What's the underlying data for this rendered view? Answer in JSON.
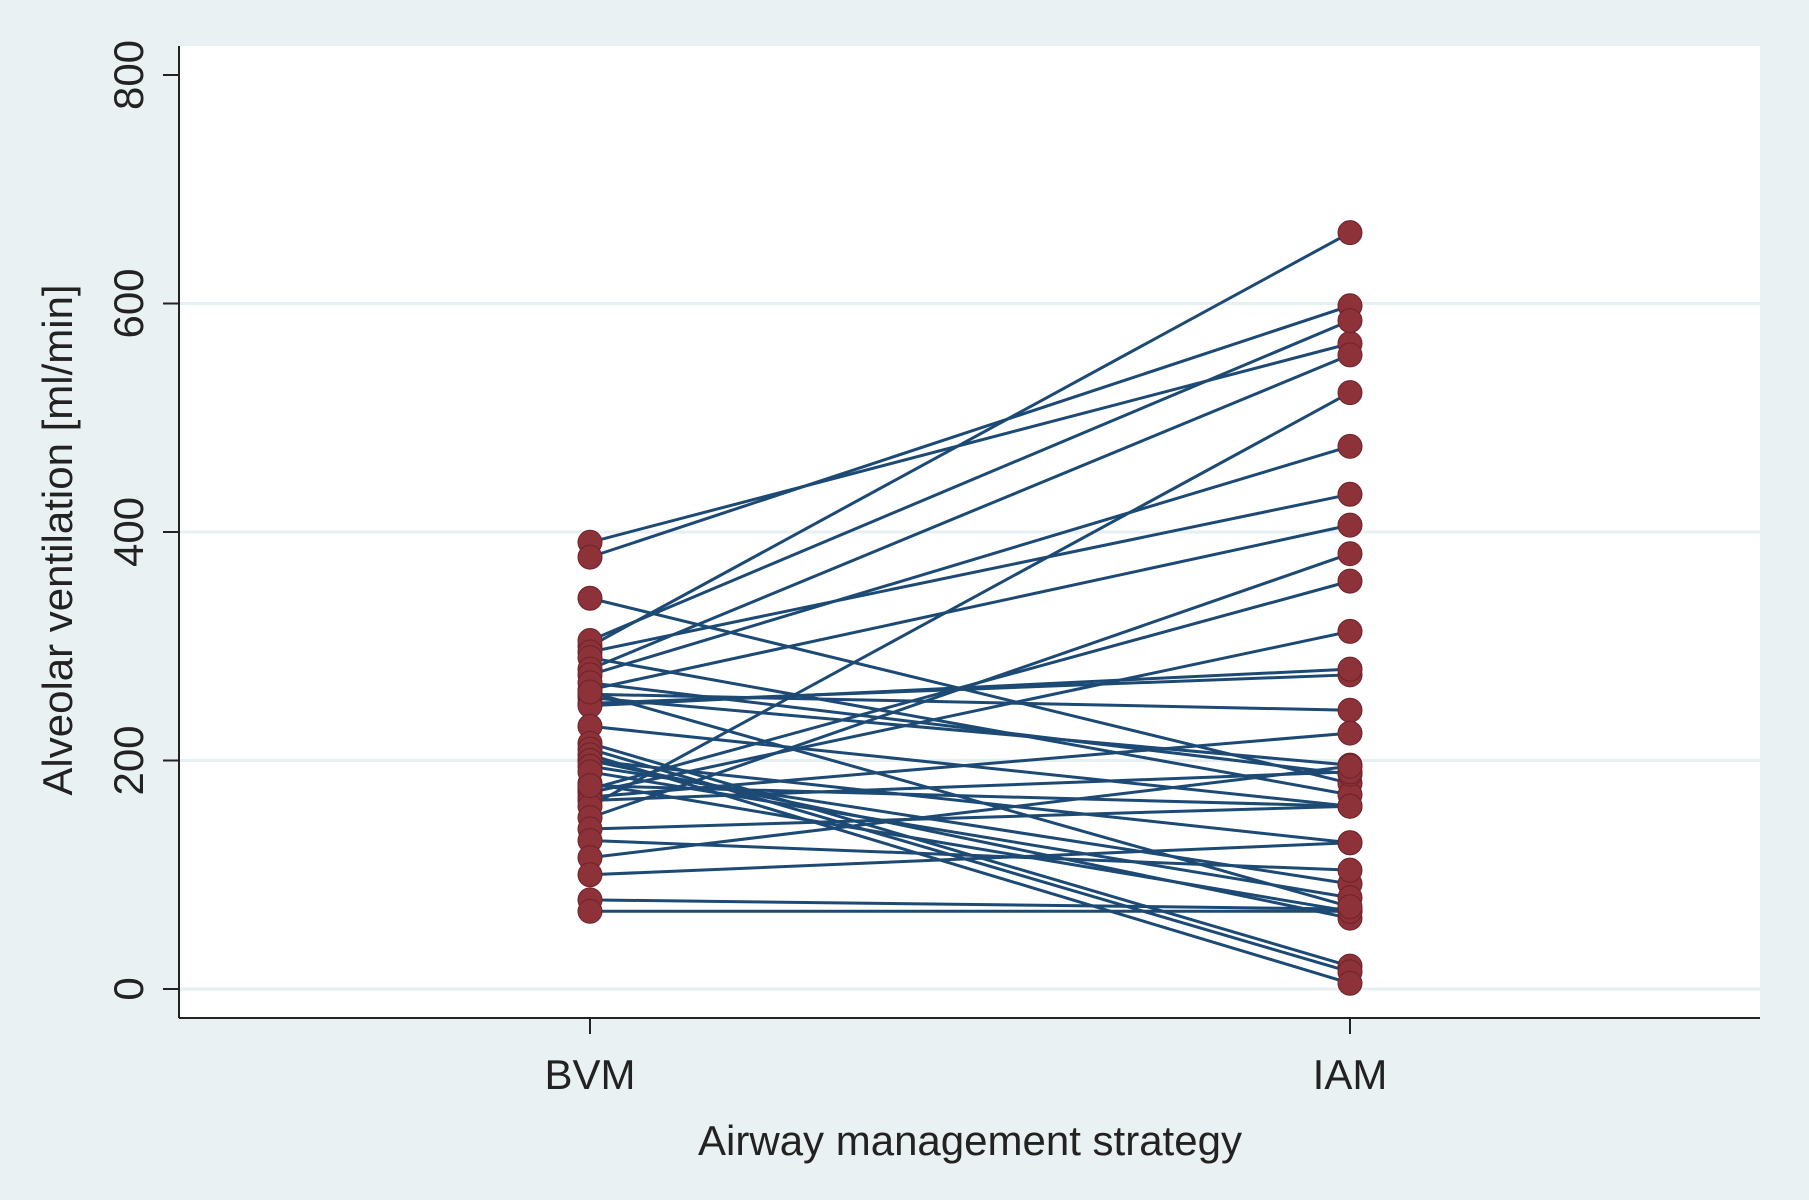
{
  "chart_data": {
    "type": "line",
    "subtype": "paired-dot-plot",
    "xlabel": "Airway management strategy",
    "ylabel": "Alveolar ventilation [ml/min]",
    "categories": [
      "BVM",
      "IAM"
    ],
    "ylim": [
      0,
      800
    ],
    "yticks": [
      0,
      200,
      400,
      600,
      800
    ],
    "grid": true,
    "legend": "none",
    "colors": {
      "background": "#eaf1f3",
      "plot": "#ffffff",
      "line": "#1c4a74",
      "marker": "#8c3238",
      "grid": "#e6eff1",
      "axis": "#222222"
    },
    "pairs": [
      [
        391,
        565
      ],
      [
        378,
        598
      ],
      [
        342,
        180
      ],
      [
        300,
        662
      ],
      [
        305,
        585
      ],
      [
        295,
        433
      ],
      [
        290,
        170
      ],
      [
        280,
        555
      ],
      [
        275,
        475
      ],
      [
        262,
        406
      ],
      [
        258,
        244
      ],
      [
        255,
        196
      ],
      [
        250,
        275
      ],
      [
        248,
        280
      ],
      [
        268,
        188
      ],
      [
        230,
        160
      ],
      [
        215,
        20
      ],
      [
        210,
        15
      ],
      [
        205,
        5
      ],
      [
        200,
        62
      ],
      [
        200,
        128
      ],
      [
        195,
        92
      ],
      [
        180,
        68
      ],
      [
        175,
        357
      ],
      [
        172,
        313
      ],
      [
        168,
        224
      ],
      [
        165,
        190
      ],
      [
        160,
        522
      ],
      [
        150,
        381
      ],
      [
        140,
        160
      ],
      [
        130,
        104
      ],
      [
        115,
        195
      ],
      [
        100,
        128
      ],
      [
        78,
        70
      ],
      [
        68,
        68
      ],
      [
        190,
        80
      ],
      [
        178,
        160
      ],
      [
        260,
        72
      ]
    ]
  }
}
